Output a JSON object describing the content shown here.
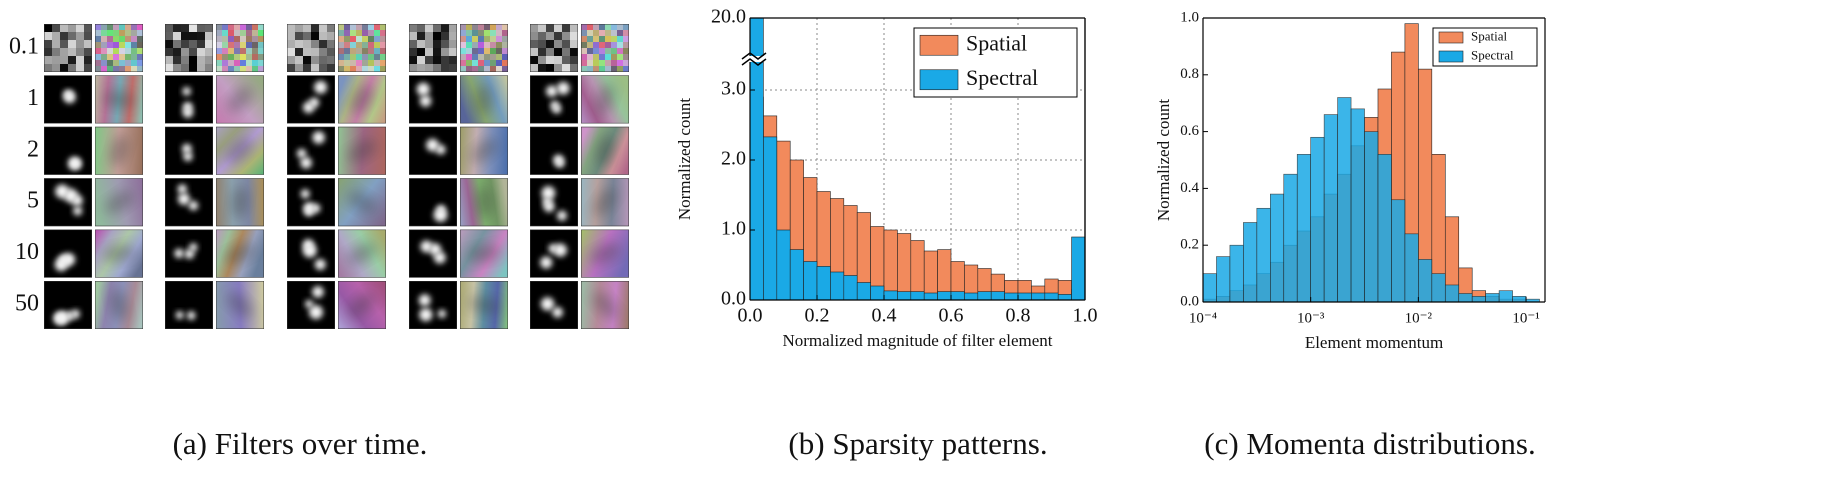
{
  "filters": {
    "row_labels": [
      "0.1",
      "1",
      "2",
      "5",
      "10",
      "50"
    ],
    "caption": "(a) Filters over time."
  },
  "chart_data": [
    {
      "type": "histogram",
      "caption": "(b) Sparsity patterns.",
      "x_label": "Normalized magnitude of filter element",
      "y_label": "Normalized count",
      "bins": [
        0,
        0.04,
        0.08,
        0.12,
        0.16,
        0.2,
        0.24,
        0.28,
        0.32,
        0.36,
        0.4,
        0.44,
        0.48,
        0.52,
        0.56,
        0.6,
        0.64,
        0.68,
        0.72,
        0.76,
        0.8,
        0.84,
        0.88,
        0.92,
        0.96,
        1.0
      ],
      "series": [
        {
          "name": "Spatial",
          "color": "#f28a5c",
          "values": [
            2.9,
            2.63,
            2.27,
            2.0,
            1.75,
            1.55,
            1.45,
            1.35,
            1.25,
            1.05,
            1.0,
            0.95,
            0.85,
            0.7,
            0.72,
            0.55,
            0.5,
            0.45,
            0.37,
            0.28,
            0.28,
            0.2,
            0.3,
            0.28,
            0.15
          ]
        },
        {
          "name": "Spectral",
          "color": "#1aa9e6",
          "values": [
            20.0,
            2.33,
            1.0,
            0.72,
            0.55,
            0.48,
            0.4,
            0.35,
            0.25,
            0.2,
            0.13,
            0.12,
            0.12,
            0.1,
            0.12,
            0.12,
            0.1,
            0.12,
            0.12,
            0.1,
            0.1,
            0.1,
            0.1,
            0.08,
            0.9
          ]
        }
      ],
      "xlim": [
        0,
        1.0
      ],
      "xticks": [
        {
          "value": 0,
          "label": "0.0"
        },
        0.2,
        0.4,
        0.6,
        0.8,
        {
          "value": 1.0,
          "label": "1.0"
        }
      ],
      "ylim": [
        0,
        20.0
      ],
      "y_break": [
        3.4,
        19.5
      ],
      "yticks": [
        {
          "value": 0,
          "label": "0.0"
        },
        {
          "value": 1,
          "label": "1.0"
        },
        {
          "value": 2,
          "label": "2.0"
        },
        {
          "value": 3,
          "label": "3.0"
        },
        {
          "value": 20,
          "label": "20.0"
        }
      ],
      "grid": true,
      "legend": "upper right"
    },
    {
      "type": "histogram",
      "caption": "(c) Momenta distributions.",
      "x_label": "Element momentum",
      "y_label": "Normalized count",
      "xscale": "log",
      "bins": [
        0.0001,
        0.00013335,
        0.00017783,
        0.00023714,
        0.00031623,
        0.0004217,
        0.00056234,
        0.00074989,
        0.001,
        0.0013335,
        0.0017783,
        0.0023714,
        0.0031623,
        0.004217,
        0.0056234,
        0.0074989,
        0.01,
        0.013335,
        0.017783,
        0.023714,
        0.031623,
        0.04217,
        0.056234,
        0.074989,
        0.1,
        0.13335
      ],
      "series": [
        {
          "name": "Spatial",
          "color": "#f28a5c",
          "values": [
            0.01,
            0.02,
            0.04,
            0.06,
            0.1,
            0.14,
            0.2,
            0.25,
            0.3,
            0.38,
            0.45,
            0.55,
            0.65,
            0.75,
            0.88,
            0.98,
            0.82,
            0.52,
            0.3,
            0.12,
            0.04,
            0.02,
            0.01,
            0.01,
            0.0
          ]
        },
        {
          "name": "Spectral",
          "color": "#1aa9e6",
          "values": [
            0.1,
            0.16,
            0.2,
            0.28,
            0.33,
            0.38,
            0.45,
            0.52,
            0.58,
            0.66,
            0.72,
            0.68,
            0.6,
            0.52,
            0.36,
            0.24,
            0.15,
            0.1,
            0.06,
            0.03,
            0.02,
            0.03,
            0.04,
            0.02,
            0.01
          ]
        }
      ],
      "xlim": [
        0.0001,
        0.15
      ],
      "xticks": [
        {
          "value": 0.0001,
          "label": "10⁻⁴"
        },
        {
          "value": 0.001,
          "label": "10⁻³"
        },
        {
          "value": 0.01,
          "label": "10⁻²"
        },
        {
          "value": 0.1,
          "label": "10⁻¹"
        }
      ],
      "ylim": [
        0,
        1.0
      ],
      "yticks": [
        {
          "value": 0,
          "label": "0.0"
        },
        0.2,
        0.4,
        0.6,
        0.8,
        {
          "value": 1.0,
          "label": "1.0"
        }
      ],
      "grid": false,
      "legend": "upper right"
    }
  ]
}
